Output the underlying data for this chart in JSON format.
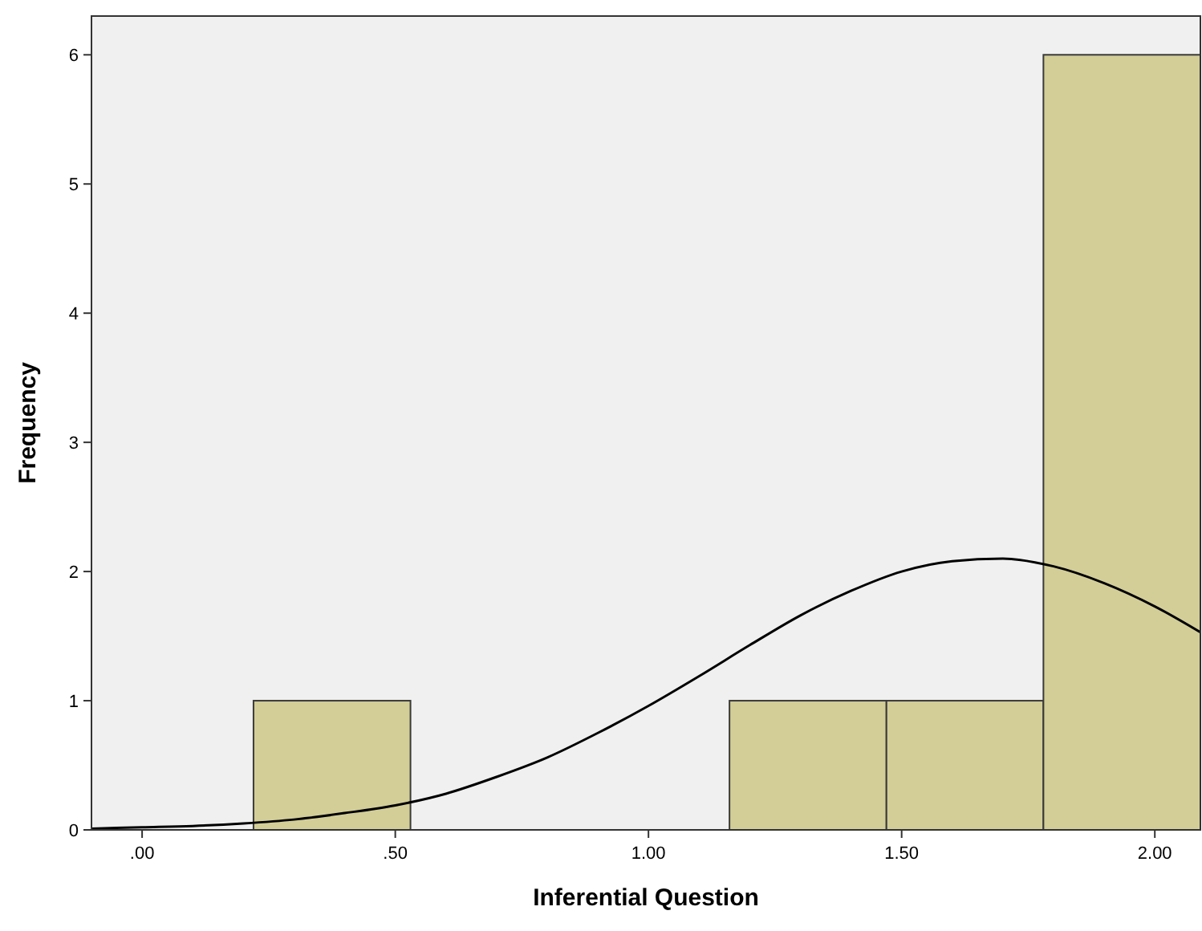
{
  "chart_data": {
    "type": "histogram",
    "xlabel": "Inferential Question",
    "ylabel": "Frequency",
    "bins": [
      0.22,
      0.53,
      1.16,
      1.47,
      1.78,
      2.09
    ],
    "values": [
      1,
      0,
      1,
      1,
      6
    ],
    "color": "#d3ce97",
    "series": [
      {
        "type": "line",
        "color": "#000000",
        "x": [
          -0.1,
          0,
          0.1,
          0.2,
          0.3,
          0.4,
          0.5,
          0.6,
          0.7,
          0.8,
          0.9,
          1.0,
          1.1,
          1.2,
          1.3,
          1.4,
          1.5,
          1.6,
          1.7,
          1.8,
          1.9,
          2.0,
          2.09
        ],
        "values": [
          0.01,
          0.02,
          0.03,
          0.05,
          0.08,
          0.13,
          0.19,
          0.28,
          0.41,
          0.56,
          0.75,
          0.96,
          1.19,
          1.43,
          1.66,
          1.85,
          2.0,
          2.08,
          2.1,
          2.04,
          1.91,
          1.73,
          1.53
        ]
      }
    ],
    "xlim": [
      -0.1,
      2.09
    ],
    "xticks": [
      {
        "value": 0,
        "label": ".00"
      },
      {
        "value": 0.5,
        "label": ".50"
      },
      {
        "value": 1,
        "label": "1.00"
      },
      {
        "value": 1.5,
        "label": "1.50"
      },
      {
        "value": 2,
        "label": "2.00"
      }
    ],
    "ylim": [
      0,
      6.3
    ],
    "yticks": [
      0,
      1,
      2,
      3,
      4,
      5,
      6
    ],
    "grid": false
  }
}
